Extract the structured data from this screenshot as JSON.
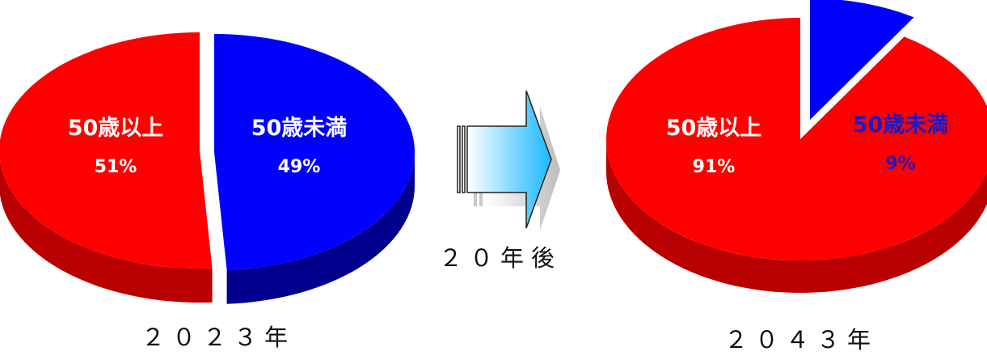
{
  "chart_data": [
    {
      "type": "pie",
      "title": "",
      "year_label": "２０２３年",
      "slices": [
        {
          "label": "50歳以上",
          "value": 51,
          "value_label": "51%",
          "color": "#ff0000",
          "side_color": "#b80000",
          "text_color": "#ffffff"
        },
        {
          "label": "50歳未満",
          "value": 49,
          "value_label": "49%",
          "color": "#0000ff",
          "side_color": "#00008c",
          "text_color": "#ffffff"
        }
      ]
    },
    {
      "type": "pie",
      "title": "",
      "year_label": "２０４３年",
      "slices": [
        {
          "label": "50歳以上",
          "value": 91,
          "value_label": "91%",
          "color": "#ff0000",
          "side_color": "#b80000",
          "text_color": "#ffffff"
        },
        {
          "label": "50歳未満",
          "value": 9,
          "value_label": "9%",
          "color": "#0000ff",
          "side_color": "#00008c",
          "text_color": "#1a1ac8"
        }
      ]
    }
  ],
  "arrow": {
    "label": "２０年後",
    "icon": "right-arrow-icon"
  }
}
